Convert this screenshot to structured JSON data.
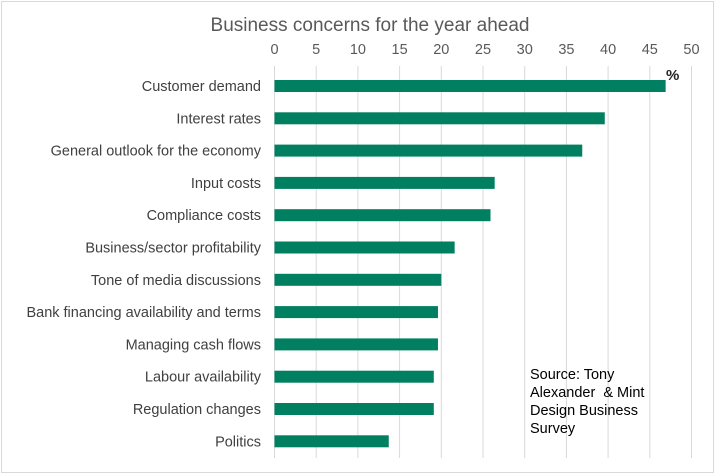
{
  "chart_data": {
    "type": "bar",
    "orientation": "horizontal",
    "title": "Business concerns for the year ahead",
    "unit_label": "%",
    "xlim": [
      0,
      50
    ],
    "xticks": [
      0,
      5,
      10,
      15,
      20,
      25,
      30,
      35,
      40,
      45,
      50
    ],
    "grid": true,
    "categories": [
      "Customer demand",
      "Interest rates",
      "General outlook for the economy",
      "Input costs",
      "Compliance costs",
      "Business/sector profitability",
      "Tone of media discussions",
      "Bank financing availability and terms",
      "Managing cash flows",
      "Labour availability",
      "Regulation changes",
      "Politics"
    ],
    "values": [
      46.9,
      39.6,
      36.9,
      26.4,
      25.9,
      21.6,
      20.0,
      19.6,
      19.6,
      19.1,
      19.1,
      13.7
    ],
    "bar_color": "#008060",
    "annotation": "Source: Tony Alexander & Mint Design Business Survey",
    "annotation_lines": [
      "Source: Tony",
      "Alexander  & Mint",
      "Design Business",
      "Survey"
    ]
  }
}
